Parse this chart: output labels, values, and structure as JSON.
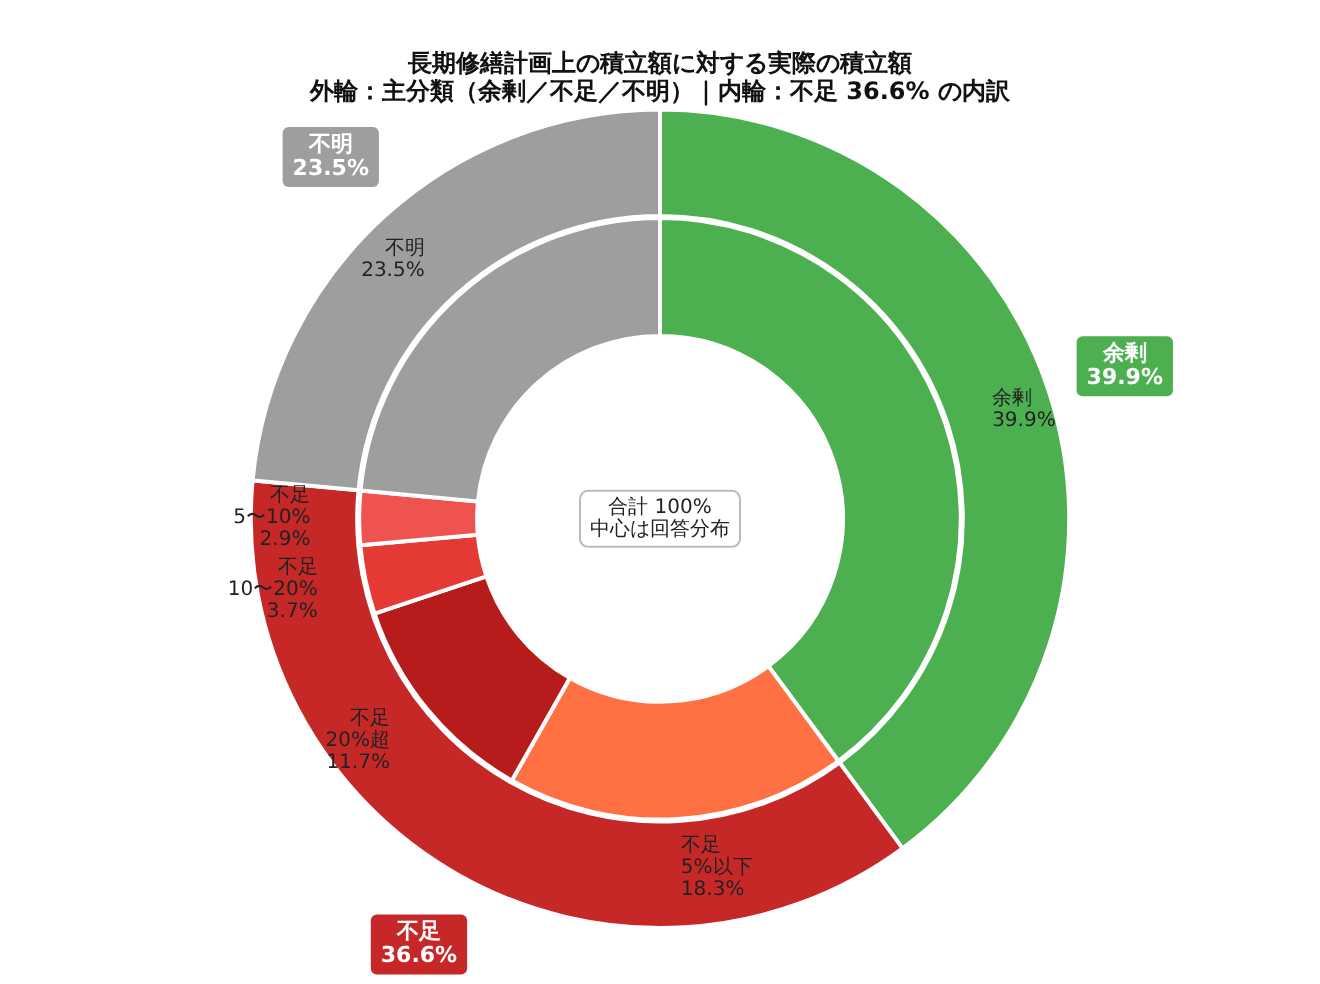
{
  "chart_data": [
    {
      "type": "donut",
      "title": "長期修繕計画上の積立額に対する実際の積立額",
      "subtitle": "外輪：主分類（余剰／不足／不明）｜内輪：不足 36.6% の内訳",
      "categories": [
        "余剰",
        "不足",
        "不明"
      ],
      "values": [
        39.9,
        36.6,
        23.5
      ],
      "colors": [
        "#4caf50",
        "#c62828",
        "#9e9e9e"
      ],
      "value_labels": [
        "39.9%",
        "36.6%",
        "23.5%"
      ],
      "legend": false
    },
    {
      "type": "donut",
      "categories": [
        "余剰",
        "不足\n5%以下",
        "不足\n20%超",
        "不足\n10〜20%",
        "不足\n5〜10%",
        "不明"
      ],
      "values": [
        39.9,
        18.3,
        11.7,
        3.7,
        2.9,
        23.5
      ],
      "colors": [
        "#4caf50",
        "#ff7043",
        "#b71c1c",
        "#e53935",
        "#ef5350",
        "#9e9e9e"
      ],
      "value_labels": [
        "39.9%",
        "18.3%",
        "11.7%",
        "3.7%",
        "2.9%",
        "23.5%"
      ],
      "annotations": [
        "合計 100%\n中心は回答分布"
      ],
      "legend": false
    }
  ]
}
